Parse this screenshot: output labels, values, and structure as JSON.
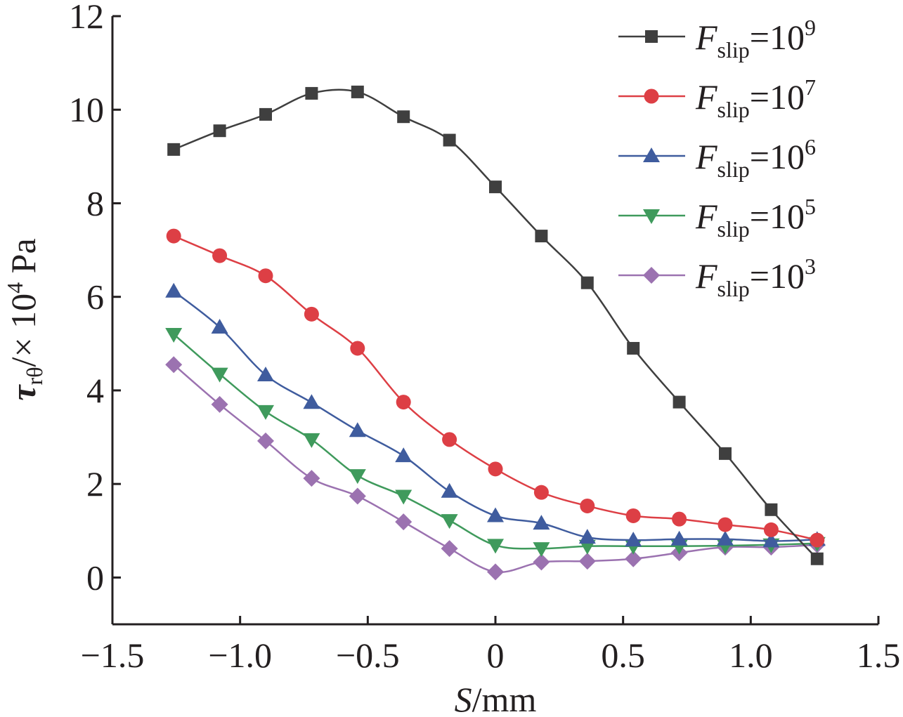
{
  "chart_data": {
    "type": "line",
    "x_axis": {
      "label_var": "S",
      "label_unit": "/mm",
      "range": [
        -1.5,
        1.5
      ],
      "ticks": [
        -1.5,
        -1.0,
        -0.5,
        0,
        0.5,
        1.0,
        1.5
      ],
      "tick_labels": [
        "−1.5",
        "−1.0",
        "−0.5",
        "0",
        "0.5",
        "1.0",
        "1.5"
      ]
    },
    "y_axis": {
      "label_symbol": "τ",
      "label_subscript": "rθ",
      "label_middle": "/× 10",
      "label_exponent": "4",
      "label_unit": " Pa",
      "range": [
        -1,
        12
      ],
      "ticks": [
        0,
        2,
        4,
        6,
        8,
        10,
        12
      ],
      "tick_labels": [
        "0",
        "2",
        "4",
        "6",
        "8",
        "10",
        "12"
      ]
    },
    "grid": false,
    "legend_position": "top-right",
    "x": [
      -1.26,
      -1.08,
      -0.9,
      -0.72,
      -0.54,
      -0.36,
      -0.18,
      0,
      0.18,
      0.36,
      0.54,
      0.72,
      0.9,
      1.08,
      1.26
    ],
    "series": [
      {
        "name_var": "F",
        "name_sub": "slip",
        "name_eq": "=10",
        "name_exp": "9",
        "color": "#3f3f3f",
        "marker": "square",
        "values": [
          9.15,
          9.55,
          9.9,
          10.35,
          10.38,
          9.85,
          9.35,
          8.35,
          7.3,
          6.3,
          4.9,
          3.75,
          2.65,
          1.45,
          0.4
        ]
      },
      {
        "name_var": "F",
        "name_sub": "slip",
        "name_eq": "=10",
        "name_exp": "7",
        "color": "#dd3f45",
        "marker": "circle",
        "values": [
          7.3,
          6.88,
          6.45,
          5.63,
          4.9,
          3.75,
          2.95,
          2.32,
          1.82,
          1.53,
          1.32,
          1.25,
          1.13,
          1.02,
          0.8
        ]
      },
      {
        "name_var": "F",
        "name_sub": "slip",
        "name_eq": "=10",
        "name_exp": "6",
        "color": "#3f5c9e",
        "marker": "triangle-up",
        "values": [
          6.12,
          5.35,
          4.33,
          3.74,
          3.14,
          2.6,
          1.84,
          1.32,
          1.16,
          0.86,
          0.8,
          0.82,
          0.82,
          0.78,
          0.81
        ]
      },
      {
        "name_var": "F",
        "name_sub": "slip",
        "name_eq": "=10",
        "name_exp": "5",
        "color": "#3f9a5c",
        "marker": "triangle-down",
        "values": [
          5.2,
          4.35,
          3.55,
          2.95,
          2.18,
          1.74,
          1.22,
          0.69,
          0.62,
          0.67,
          0.67,
          0.67,
          0.68,
          0.7,
          0.73
        ]
      },
      {
        "name_var": "F",
        "name_sub": "slip",
        "name_eq": "=10",
        "name_exp": "3",
        "color": "#9b72b0",
        "marker": "diamond",
        "values": [
          4.55,
          3.7,
          2.92,
          2.12,
          1.74,
          1.19,
          0.62,
          0.12,
          0.33,
          0.35,
          0.4,
          0.53,
          0.65,
          0.65,
          0.7
        ]
      }
    ]
  }
}
